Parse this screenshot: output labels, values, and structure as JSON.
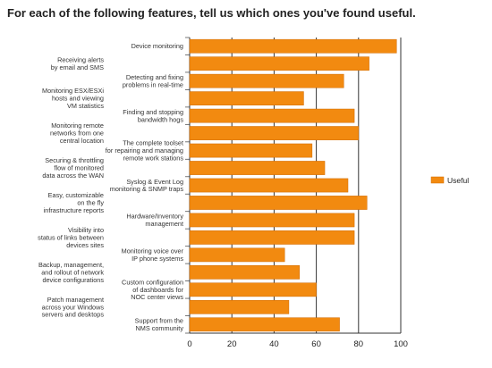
{
  "title": "For each of the following features, tell us which ones you've found useful.",
  "chart_data": {
    "type": "bar",
    "orientation": "horizontal",
    "title": "For each of the following features, tell us which ones you've found useful.",
    "xlim": [
      0,
      100
    ],
    "x_ticks": [
      0,
      20,
      40,
      60,
      80,
      100
    ],
    "grid": true,
    "legend_position": "right",
    "bar_color": "#f28a10",
    "series": [
      {
        "name": "Useful",
        "values": [
          98,
          85,
          73,
          54,
          78,
          80,
          58,
          64,
          75,
          84,
          78,
          78,
          45,
          52,
          60,
          47,
          71
        ]
      }
    ],
    "right_labels": [
      {
        "lines": [
          "Device monitoring"
        ],
        "row": 0
      },
      {
        "lines": [
          "Detecting and fixing",
          "problems in real-time"
        ],
        "row": 2
      },
      {
        "lines": [
          "Finding and stopping",
          "bandwidth hogs"
        ],
        "row": 4
      },
      {
        "lines": [
          "The complete toolset",
          "for repairing and managing",
          "remote work stations"
        ],
        "row": 6
      },
      {
        "lines": [
          "Syslog & Event Log",
          "monitoring & SNMP traps"
        ],
        "row": 8
      },
      {
        "lines": [
          "Hardware/Inventory",
          "management"
        ],
        "row": 10
      },
      {
        "lines": [
          "Monitoring voice over",
          "IP phone systems"
        ],
        "row": 12
      },
      {
        "lines": [
          "Custom configuration",
          "of dashboards for",
          "NOC center views"
        ],
        "row": 14
      },
      {
        "lines": [
          "Support from the",
          "NMS community"
        ],
        "row": 16
      }
    ],
    "left_labels": [
      {
        "lines": [
          "Receiving alerts",
          "by email and SMS"
        ],
        "row": 1
      },
      {
        "lines": [
          "Monitoring ESX/ESXi",
          "hosts and viewing",
          "VM statistics"
        ],
        "row": 3
      },
      {
        "lines": [
          "Monitoring remote",
          "networks from one",
          "central location"
        ],
        "row": 5
      },
      {
        "lines": [
          "Securing & throttling",
          "flow of monitored",
          "data across the WAN"
        ],
        "row": 7
      },
      {
        "lines": [
          "Easy, customizable",
          "on the fly",
          "infrastructure reports"
        ],
        "row": 9
      },
      {
        "lines": [
          "Visibility into",
          "status of links between",
          "devices sites"
        ],
        "row": 11
      },
      {
        "lines": [
          "Backup, management,",
          "and rollout of network",
          "device configurations"
        ],
        "row": 13
      },
      {
        "lines": [
          "Patch management",
          "across your Windows",
          "servers and desktops"
        ],
        "row": 15
      }
    ]
  }
}
